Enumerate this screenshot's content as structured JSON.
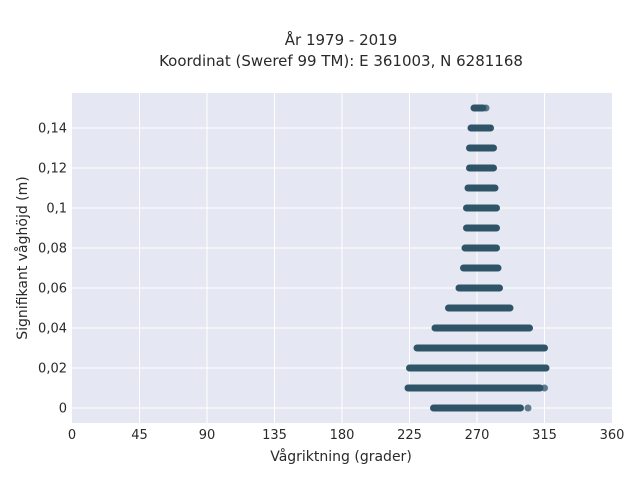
{
  "chart_data": {
    "type": "scatter",
    "title_lines": [
      "År 1979 - 2019",
      "Koordinat (Sweref 99 TM): E 361003, N 6281168"
    ],
    "xlabel": "Vågriktning (grader)",
    "ylabel": "Signifikant våghöjd (m)",
    "xlim": [
      0,
      360
    ],
    "ylim": [
      -0.0075,
      0.1575
    ],
    "x_ticks": [
      0,
      45,
      90,
      135,
      180,
      225,
      270,
      315,
      360
    ],
    "x_tick_labels": [
      "0",
      "45",
      "90",
      "135",
      "180",
      "225",
      "270",
      "315",
      "360"
    ],
    "y_ticks": [
      0,
      0.02,
      0.04,
      0.06,
      0.08,
      0.1,
      0.12,
      0.14
    ],
    "y_tick_labels": [
      "0",
      "0,02",
      "0,04",
      "0,06",
      "0,08",
      "0,1",
      "0,12",
      "0,14"
    ],
    "grid": true,
    "background_color": "#e5e8f2",
    "marker_color": "#2f5468",
    "bands": [
      {
        "y": 0.0,
        "x_min": 241,
        "x_max": 299
      },
      {
        "y": 0.01,
        "x_min": 224,
        "x_max": 312
      },
      {
        "y": 0.02,
        "x_min": 225,
        "x_max": 316
      },
      {
        "y": 0.03,
        "x_min": 230,
        "x_max": 315
      },
      {
        "y": 0.04,
        "x_min": 242,
        "x_max": 305
      },
      {
        "y": 0.05,
        "x_min": 251,
        "x_max": 292
      },
      {
        "y": 0.06,
        "x_min": 258,
        "x_max": 285
      },
      {
        "y": 0.07,
        "x_min": 261,
        "x_max": 284
      },
      {
        "y": 0.08,
        "x_min": 262,
        "x_max": 283
      },
      {
        "y": 0.09,
        "x_min": 263,
        "x_max": 283
      },
      {
        "y": 0.1,
        "x_min": 263,
        "x_max": 283
      },
      {
        "y": 0.11,
        "x_min": 264,
        "x_max": 282
      },
      {
        "y": 0.12,
        "x_min": 265,
        "x_max": 281
      },
      {
        "y": 0.13,
        "x_min": 265,
        "x_max": 281
      },
      {
        "y": 0.14,
        "x_min": 266,
        "x_max": 279
      },
      {
        "y": 0.15,
        "x_min": 268,
        "x_max": 274
      }
    ],
    "outliers": [
      {
        "x": 304,
        "y": 0.0
      },
      {
        "x": 315,
        "y": 0.01
      },
      {
        "x": 276,
        "y": 0.15
      }
    ]
  }
}
